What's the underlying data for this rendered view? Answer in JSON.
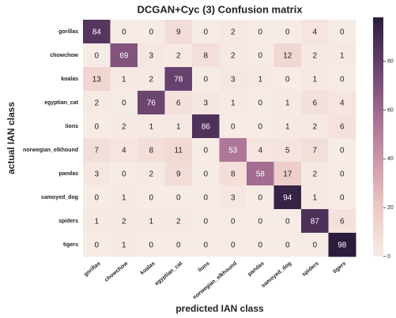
{
  "chart_data": {
    "type": "heatmap",
    "title": "DCGAN+Cyc (3) Confusion matrix",
    "xlabel": "predicted IAN class",
    "ylabel": "actual IAN class",
    "x_categories": [
      "gorillas",
      "chowchow",
      "koalas",
      "egyptian_cat",
      "lions",
      "norwegian_elkhound",
      "pandas",
      "samoyed_dog",
      "spiders",
      "tigers"
    ],
    "y_categories": [
      "gorillas",
      "chowchow",
      "koalas",
      "egyptian_cat",
      "lions",
      "norwegian_elkhound",
      "pandas",
      "samoyed_dog",
      "spiders",
      "tigers"
    ],
    "values": [
      [
        84,
        0,
        0,
        9,
        0,
        2,
        0,
        0,
        4,
        0
      ],
      [
        0,
        69,
        3,
        2,
        8,
        2,
        0,
        12,
        2,
        1
      ],
      [
        13,
        1,
        2,
        78,
        0,
        3,
        1,
        0,
        1,
        0
      ],
      [
        2,
        0,
        76,
        6,
        3,
        1,
        0,
        1,
        6,
        4
      ],
      [
        0,
        2,
        1,
        1,
        86,
        0,
        0,
        1,
        2,
        6
      ],
      [
        7,
        4,
        8,
        11,
        0,
        53,
        4,
        5,
        7,
        0
      ],
      [
        3,
        0,
        2,
        9,
        0,
        8,
        58,
        17,
        2,
        0
      ],
      [
        0,
        1,
        0,
        0,
        0,
        3,
        0,
        94,
        1,
        0
      ],
      [
        1,
        2,
        1,
        2,
        0,
        0,
        0,
        0,
        87,
        6
      ],
      [
        0,
        1,
        0,
        0,
        0,
        0,
        0,
        0,
        0,
        98
      ]
    ],
    "zlim": [
      0,
      98
    ],
    "zticks": [
      0,
      20,
      40,
      60,
      80
    ],
    "colormap": [
      "#f7ebe6",
      "#eccac5",
      "#cf97a9",
      "#a16a8f",
      "#66406d",
      "#2b1c3c"
    ]
  }
}
